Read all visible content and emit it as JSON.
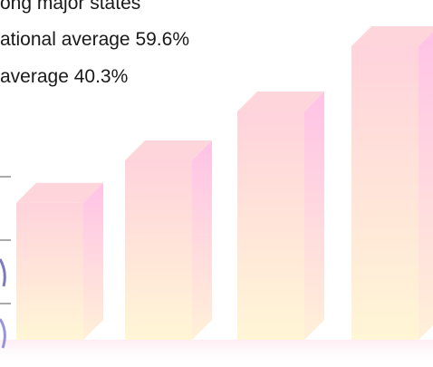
{
  "caption": {
    "line1": "ong major states",
    "line2": "ational average 59.6%",
    "line3": "average 40.3%"
  },
  "chart_data": {
    "type": "bar",
    "title": "",
    "xlabel": "",
    "ylabel": "",
    "categories": [
      "",
      "",
      "",
      ""
    ],
    "series": [
      {
        "values": [
          42,
          55,
          70,
          90
        ]
      }
    ],
    "ylim": [
      0,
      100
    ],
    "grid": true,
    "legend": "none",
    "colors": {
      "front_top": "#ffd3dc",
      "front_bottom": "#fff6d6",
      "side_top": "#ffc2e6",
      "side_bottom": "#fff0d8",
      "cap": "#ffd0d8",
      "gridline": "#555555"
    }
  }
}
